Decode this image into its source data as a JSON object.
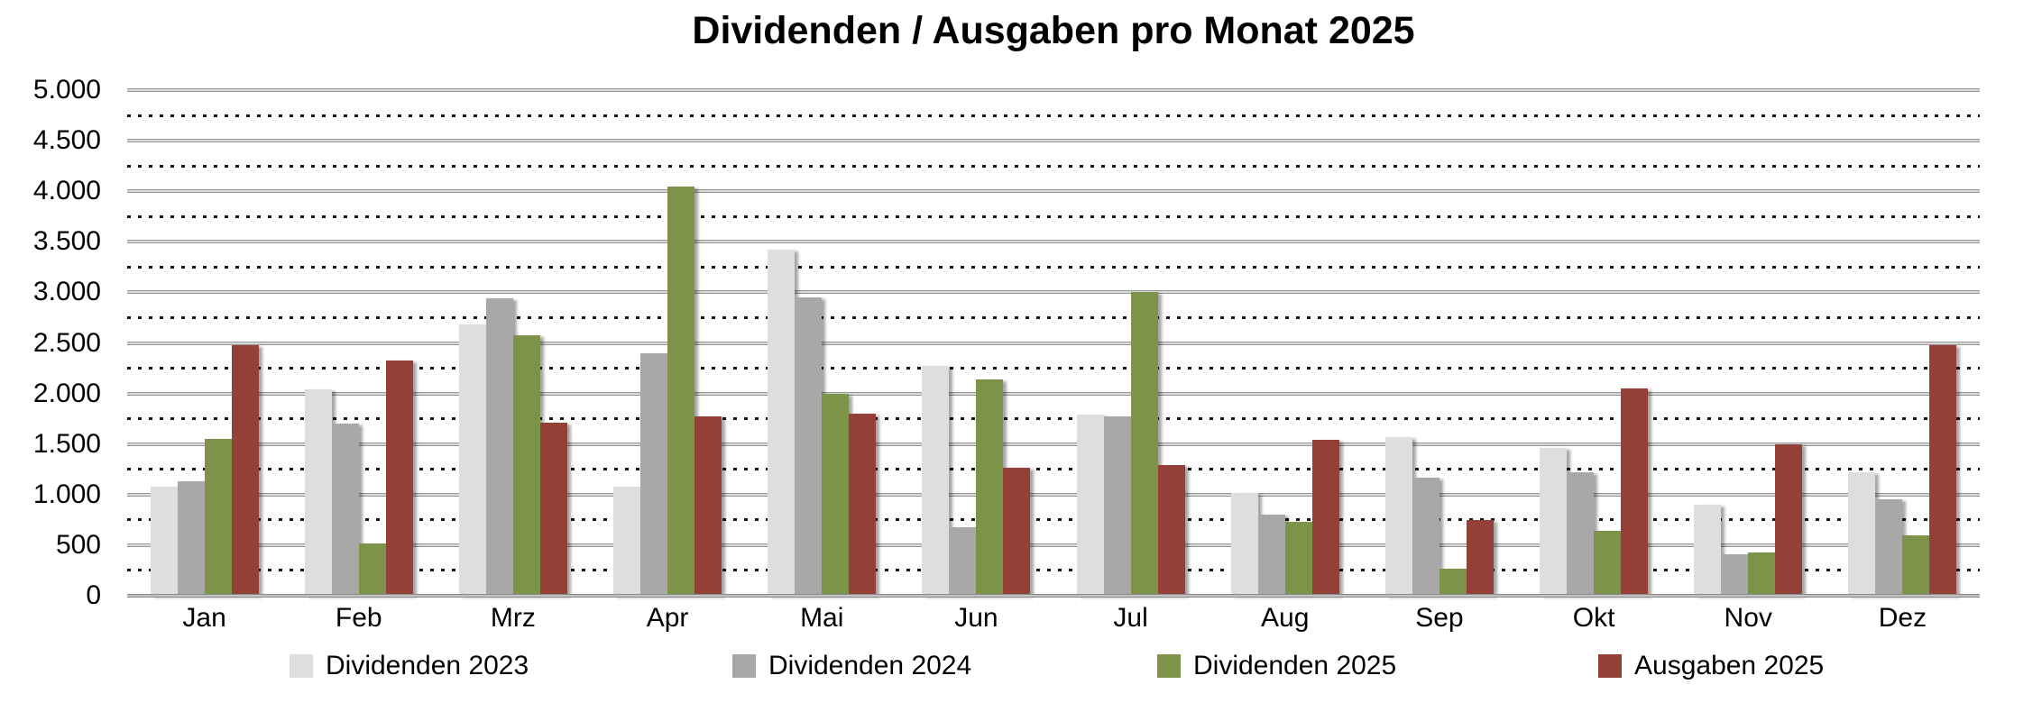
{
  "title": "Dividenden / Ausgaben pro Monat 2025",
  "chart_data": {
    "type": "bar",
    "categories": [
      "Jan",
      "Feb",
      "Mrz",
      "Apr",
      "Mai",
      "Jun",
      "Jul",
      "Aug",
      "Sep",
      "Okt",
      "Nov",
      "Dez"
    ],
    "series": [
      {
        "name": "Dividenden 2023",
        "color": "#dedede",
        "values": [
          1080,
          2040,
          2680,
          1080,
          3420,
          2270,
          1790,
          1020,
          1570,
          1460,
          900,
          1220
        ]
      },
      {
        "name": "Dividenden 2024",
        "color": "#a8a8a8",
        "values": [
          1130,
          1700,
          2940,
          2400,
          2950,
          680,
          1770,
          800,
          1170,
          1220,
          410,
          950
        ]
      },
      {
        "name": "Dividenden 2025",
        "color": "#7e934a",
        "values": [
          1550,
          520,
          2580,
          4050,
          2000,
          2140,
          3000,
          730,
          270,
          640,
          430,
          600
        ]
      },
      {
        "name": "Ausgaben 2025",
        "color": "#944039",
        "values": [
          2480,
          2330,
          1710,
          1770,
          1800,
          1270,
          1290,
          1540,
          750,
          2050,
          1500,
          2480
        ]
      }
    ],
    "ylim": [
      0,
      5000
    ],
    "y_major_step": 500,
    "y_minor_step": 250,
    "y_tick_labels": [
      "0",
      "500",
      "1.000",
      "1.500",
      "2.000",
      "2.500",
      "3.000",
      "3.500",
      "4.000",
      "4.500",
      "5.000"
    ],
    "grid": "major solid gray, minor dotted black",
    "legend_position": "bottom",
    "axis_color": "#8a8a8a",
    "grid_major_color": "#969696",
    "grid_minor_color": "#161616"
  }
}
